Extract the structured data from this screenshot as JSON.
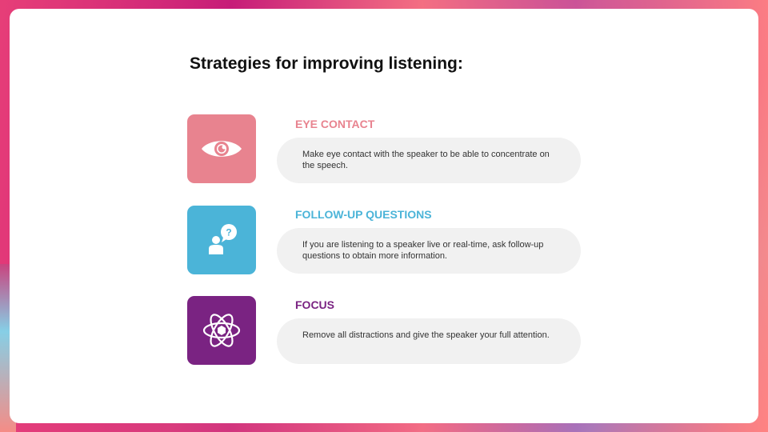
{
  "slide": {
    "title": "Strategies for improving listening:"
  },
  "items": [
    {
      "heading": "EYE CONTACT",
      "text": "Make eye contact with the speaker to be able to concentrate on the speech.",
      "icon": "eye-icon",
      "color": "#e8838f"
    },
    {
      "heading": "FOLLOW-UP QUESTIONS",
      "text": "If you are listening to a speaker live or real-time, ask follow-up questions to obtain more information.",
      "icon": "person-question-icon",
      "color": "#4bb4d8"
    },
    {
      "heading": "FOCUS",
      "text": "Remove all distractions and give the speaker your full attention.",
      "icon": "atom-icon",
      "color": "#7a2382"
    }
  ],
  "colors": {
    "background_gradient": [
      "#e8527c",
      "#c2187a",
      "#f07a8c",
      "#8fcfe8"
    ],
    "card": "#ffffff",
    "pill": "#f1f1f1"
  }
}
